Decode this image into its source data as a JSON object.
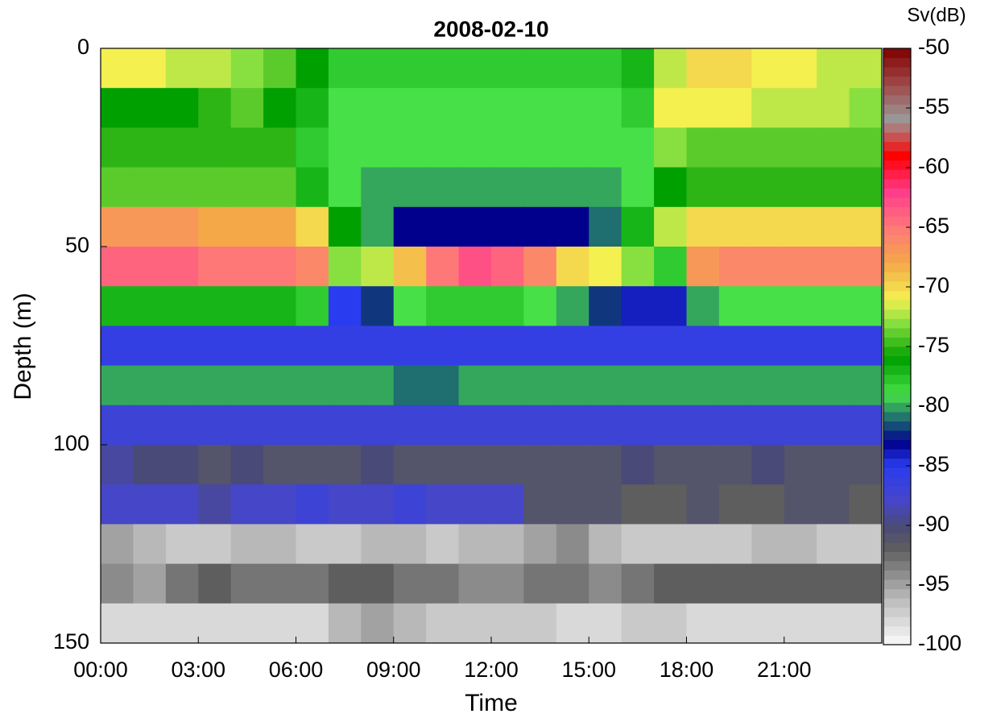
{
  "chart_data": {
    "type": "heatmap",
    "title": "2008-02-10",
    "xlabel": "Time",
    "ylabel": "Depth (m)",
    "colorbar_label": "Sv(dB)",
    "xlim": [
      0,
      24
    ],
    "xticks": [
      {
        "value": 0,
        "label": "00:00"
      },
      {
        "value": 3,
        "label": "03:00"
      },
      {
        "value": 6,
        "label": "06:00"
      },
      {
        "value": 9,
        "label": "09:00"
      },
      {
        "value": 12,
        "label": "12:00"
      },
      {
        "value": 15,
        "label": "15:00"
      },
      {
        "value": 18,
        "label": "18:00"
      },
      {
        "value": 21,
        "label": "21:00"
      }
    ],
    "ylim": [
      150,
      0
    ],
    "yticks": [
      0,
      50,
      100,
      150
    ],
    "y_reversed": true,
    "clim": [
      -100,
      -50
    ],
    "cticks": [
      -100,
      -95,
      -90,
      -85,
      -80,
      -75,
      -70,
      -65,
      -60,
      -55,
      -50
    ],
    "colormap": [
      {
        "value": -100,
        "color": "#fafafa"
      },
      {
        "value": -96,
        "color": "#b8b8b8"
      },
      {
        "value": -92,
        "color": "#5e5e5e"
      },
      {
        "value": -90,
        "color": "#4a4a78"
      },
      {
        "value": -88,
        "color": "#4646c8"
      },
      {
        "value": -85,
        "color": "#2a3cf0"
      },
      {
        "value": -83,
        "color": "#00008c"
      },
      {
        "value": -81,
        "color": "#1f6e70"
      },
      {
        "value": -79,
        "color": "#48e048"
      },
      {
        "value": -76,
        "color": "#00a000"
      },
      {
        "value": -73,
        "color": "#88e040"
      },
      {
        "value": -71,
        "color": "#f4f050"
      },
      {
        "value": -68,
        "color": "#f4a848"
      },
      {
        "value": -65,
        "color": "#ff7878"
      },
      {
        "value": -62,
        "color": "#ff3c8c"
      },
      {
        "value": -59,
        "color": "#ff0000"
      },
      {
        "value": -56,
        "color": "#9a9a9a"
      },
      {
        "value": -53,
        "color": "#a04848"
      },
      {
        "value": -50,
        "color": "#800000"
      }
    ],
    "x": [
      0.5,
      1.5,
      2.5,
      3.5,
      4.5,
      5.5,
      6.5,
      7.5,
      8.5,
      9.5,
      10.5,
      11.5,
      12.5,
      13.5,
      14.5,
      15.5,
      16.5,
      17.5,
      18.5,
      19.5,
      20.5,
      21.5,
      22.5,
      23.5
    ],
    "y": [
      5,
      15,
      25,
      35,
      45,
      55,
      65,
      75,
      85,
      95,
      105,
      115,
      125,
      135,
      145
    ],
    "z": [
      [
        -71,
        -71,
        -72,
        -72,
        -73,
        -74,
        -76,
        -78,
        -78,
        -78,
        -78,
        -78,
        -78,
        -78,
        -78,
        -78,
        -77,
        -72,
        -70,
        -70,
        -71,
        -71,
        -72,
        -72
      ],
      [
        -76,
        -76,
        -76,
        -75,
        -74,
        -76,
        -77,
        -79,
        -79,
        -79,
        -79,
        -79,
        -79,
        -79,
        -79,
        -79,
        -78,
        -71,
        -71,
        -71,
        -72,
        -72,
        -72,
        -73
      ],
      [
        -75,
        -75,
        -75,
        -75,
        -75,
        -75,
        -78,
        -79,
        -79,
        -79,
        -79,
        -79,
        -79,
        -79,
        -79,
        -79,
        -79,
        -73,
        -74,
        -74,
        -74,
        -74,
        -74,
        -74
      ],
      [
        -74,
        -74,
        -74,
        -74,
        -74,
        -74,
        -77,
        -79,
        -80,
        -80,
        -80,
        -80,
        -80,
        -80,
        -80,
        -80,
        -79,
        -76,
        -75,
        -75,
        -75,
        -75,
        -75,
        -75
      ],
      [
        -67,
        -67,
        -67,
        -68,
        -68,
        -68,
        -70,
        -76,
        -80,
        -83,
        -83,
        -83,
        -83,
        -83,
        -83,
        -81,
        -77,
        -72,
        -70,
        -70,
        -70,
        -70,
        -70,
        -70
      ],
      [
        -64,
        -64,
        -64,
        -65,
        -65,
        -65,
        -66,
        -73,
        -72,
        -69,
        -65,
        -63,
        -64,
        -66,
        -70,
        -71,
        -73,
        -78,
        -67,
        -66,
        -66,
        -66,
        -66,
        -66
      ],
      [
        -77,
        -77,
        -77,
        -77,
        -77,
        -77,
        -78,
        -85,
        -82,
        -79,
        -78,
        -78,
        -78,
        -79,
        -80,
        -82,
        -84,
        -84,
        -80,
        -79,
        -79,
        -79,
        -79,
        -79
      ],
      [
        -86,
        -86,
        -86,
        -86,
        -86,
        -86,
        -86,
        -86,
        -86,
        -86,
        -86,
        -86,
        -86,
        -86,
        -86,
        -86,
        -86,
        -86,
        -86,
        -86,
        -86,
        -86,
        -86,
        -86
      ],
      [
        -80,
        -80,
        -80,
        -80,
        -80,
        -80,
        -80,
        -80,
        -80,
        -81,
        -81,
        -80,
        -80,
        -80,
        -80,
        -80,
        -80,
        -80,
        -80,
        -80,
        -80,
        -80,
        -80,
        -80
      ],
      [
        -87,
        -87,
        -87,
        -87,
        -87,
        -87,
        -87,
        -87,
        -87,
        -87,
        -87,
        -87,
        -87,
        -87,
        -87,
        -87,
        -87,
        -87,
        -87,
        -87,
        -87,
        -87,
        -87,
        -87
      ],
      [
        -89,
        -90,
        -90,
        -91,
        -90,
        -91,
        -91,
        -91,
        -90,
        -91,
        -91,
        -91,
        -91,
        -91,
        -91,
        -91,
        -90,
        -91,
        -91,
        -91,
        -90,
        -91,
        -91,
        -91
      ],
      [
        -88,
        -88,
        -88,
        -89,
        -88,
        -88,
        -87,
        -88,
        -88,
        -87,
        -88,
        -88,
        -88,
        -91,
        -91,
        -91,
        -92,
        -92,
        -91,
        -92,
        -92,
        -91,
        -91,
        -92
      ],
      [
        -95,
        -96,
        -97,
        -97,
        -96,
        -96,
        -97,
        -97,
        -96,
        -96,
        -97,
        -96,
        -96,
        -95,
        -94,
        -96,
        -97,
        -97,
        -97,
        -97,
        -96,
        -96,
        -97,
        -97
      ],
      [
        -94,
        -95,
        -93,
        -92,
        -93,
        -93,
        -93,
        -92,
        -92,
        -93,
        -93,
        -94,
        -94,
        -93,
        -93,
        -94,
        -93,
        -92,
        -92,
        -92,
        -92,
        -92,
        -92,
        -92
      ],
      [
        -98,
        -98,
        -98,
        -98,
        -98,
        -98,
        -98,
        -96,
        -95,
        -96,
        -97,
        -97,
        -97,
        -97,
        -98,
        -98,
        -97,
        -97,
        -98,
        -98,
        -98,
        -98,
        -98,
        -98
      ]
    ]
  }
}
